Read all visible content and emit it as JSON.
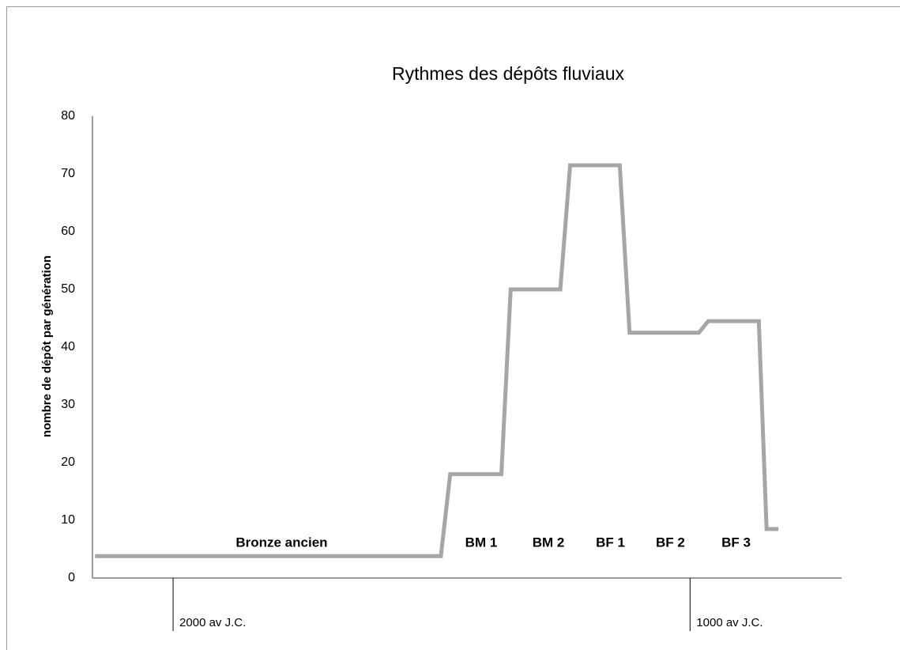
{
  "chart_data": {
    "type": "line",
    "title": "Rythmes des dépôts fluviaux",
    "y_label": "nombre de dépôt par génération",
    "x": [
      -2151,
      -1482,
      -1464,
      -1365,
      -1347,
      -1251,
      -1232,
      -1136,
      -1117,
      -983,
      -965,
      -867,
      -852,
      -829
    ],
    "series": [
      {
        "color": "#a6a6a6",
        "values": [
          3.8,
          3.8,
          18,
          18,
          50,
          50,
          71.5,
          71.5,
          42.5,
          42.5,
          44.5,
          44.5,
          8.5,
          8.5
        ]
      }
    ],
    "xlim": [
      -2156,
      -707
    ],
    "xticks": [
      {
        "value": -2000,
        "label": "2000 av J.C."
      },
      {
        "value": -1000,
        "label": "1000 av J.C."
      }
    ],
    "ylim": [
      0,
      80
    ],
    "yticks": [
      0,
      10,
      20,
      30,
      40,
      50,
      60,
      70,
      80
    ],
    "grid": false,
    "annotations": [
      {
        "text": "Bronze ancien",
        "x": -1790,
        "y": 6
      },
      {
        "text": "BM 1",
        "x": -1404,
        "y": 6
      },
      {
        "text": "BM 2",
        "x": -1274,
        "y": 6
      },
      {
        "text": "BF 1",
        "x": -1154,
        "y": 6
      },
      {
        "text": "BF 2",
        "x": -1038,
        "y": 6
      },
      {
        "text": "BF 3",
        "x": -911,
        "y": 6
      }
    ]
  }
}
